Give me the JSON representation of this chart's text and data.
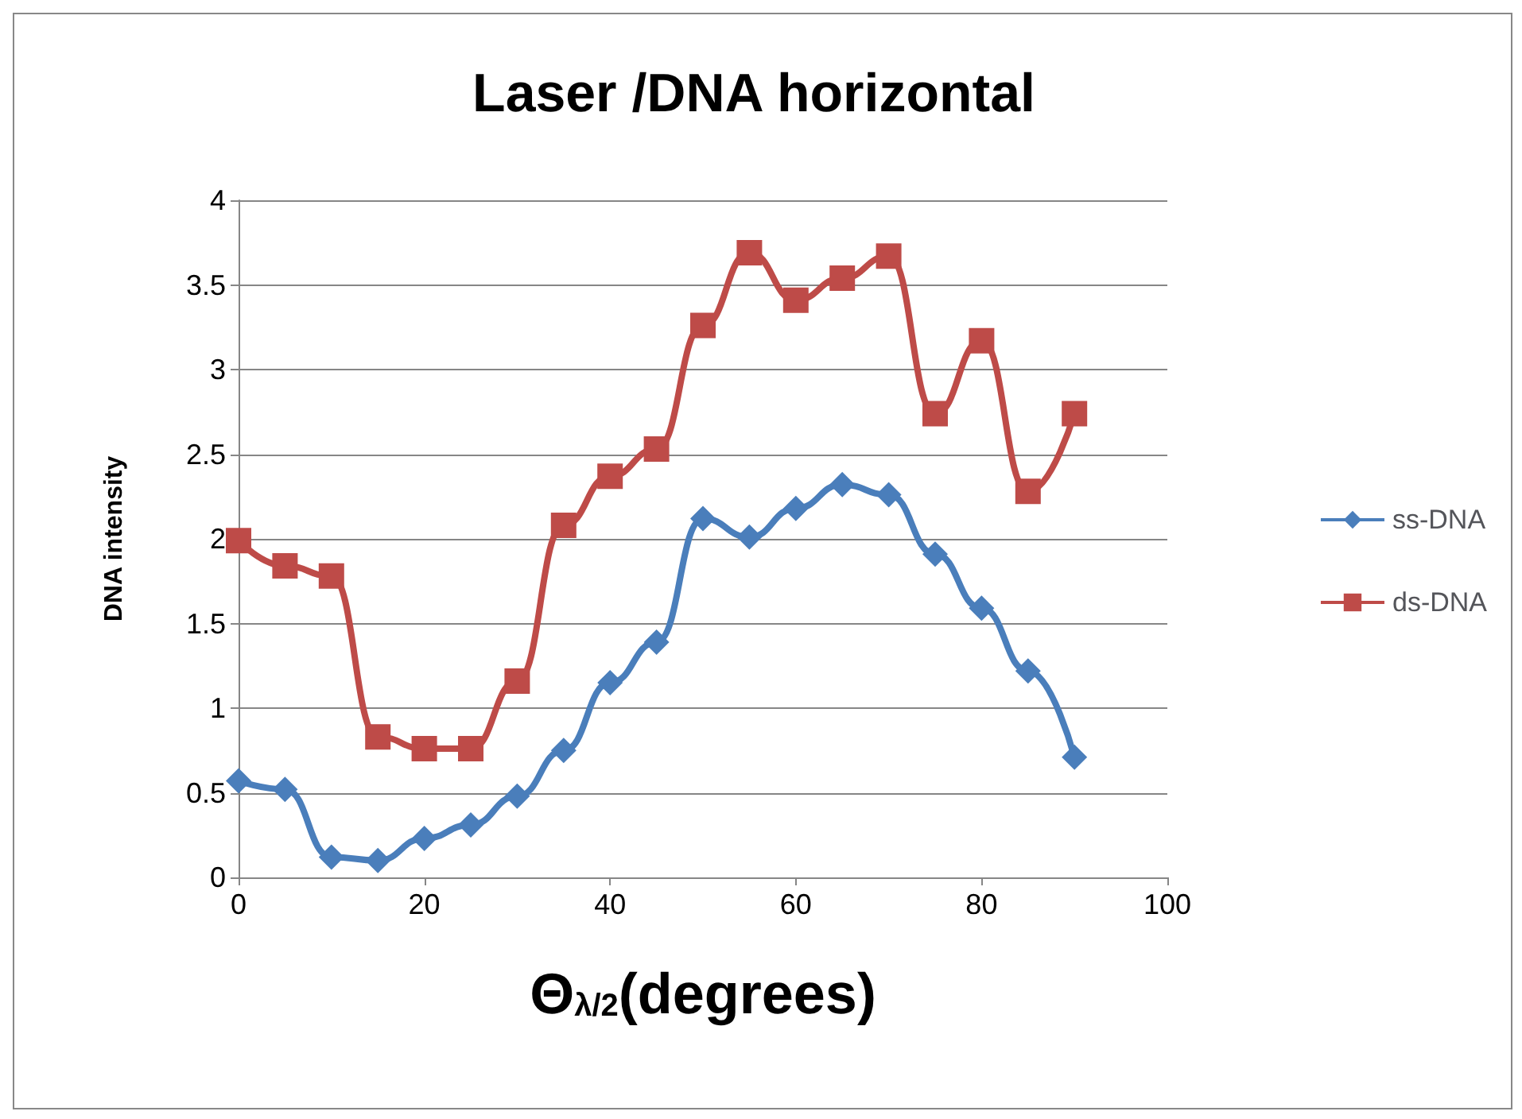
{
  "chart_data": {
    "type": "line",
    "title": "Laser /DNA horizontal",
    "xlabel": "Θ$_{λ/2}$(degrees)",
    "ylabel": "DNA intensity",
    "x": [
      0,
      5,
      10,
      15,
      20,
      25,
      30,
      35,
      40,
      45,
      50,
      55,
      60,
      65,
      70,
      75,
      80,
      85,
      90
    ],
    "series": [
      {
        "name": "ss-DNA",
        "color": "#4a7ebb",
        "marker": "diamond",
        "values": [
          0.57,
          0.52,
          0.12,
          0.1,
          0.23,
          0.31,
          0.48,
          0.75,
          1.15,
          1.39,
          2.12,
          2.01,
          2.18,
          2.32,
          2.26,
          1.91,
          1.59,
          1.22,
          0.71
        ]
      },
      {
        "name": "ds-DNA",
        "color": "#be4b48",
        "marker": "square",
        "values": [
          1.99,
          1.84,
          1.78,
          0.83,
          0.76,
          0.76,
          1.16,
          2.08,
          2.37,
          2.53,
          3.26,
          3.69,
          3.41,
          3.54,
          3.67,
          2.74,
          3.17,
          2.28,
          2.74
        ]
      }
    ],
    "xlim": [
      0,
      100
    ],
    "xticks": [
      0,
      20,
      40,
      60,
      80,
      100
    ],
    "ylim": [
      0,
      4
    ],
    "yticks": [
      0,
      0.5,
      1,
      1.5,
      2,
      2.5,
      3,
      3.5,
      4
    ],
    "grid": "y",
    "legend": "right"
  }
}
